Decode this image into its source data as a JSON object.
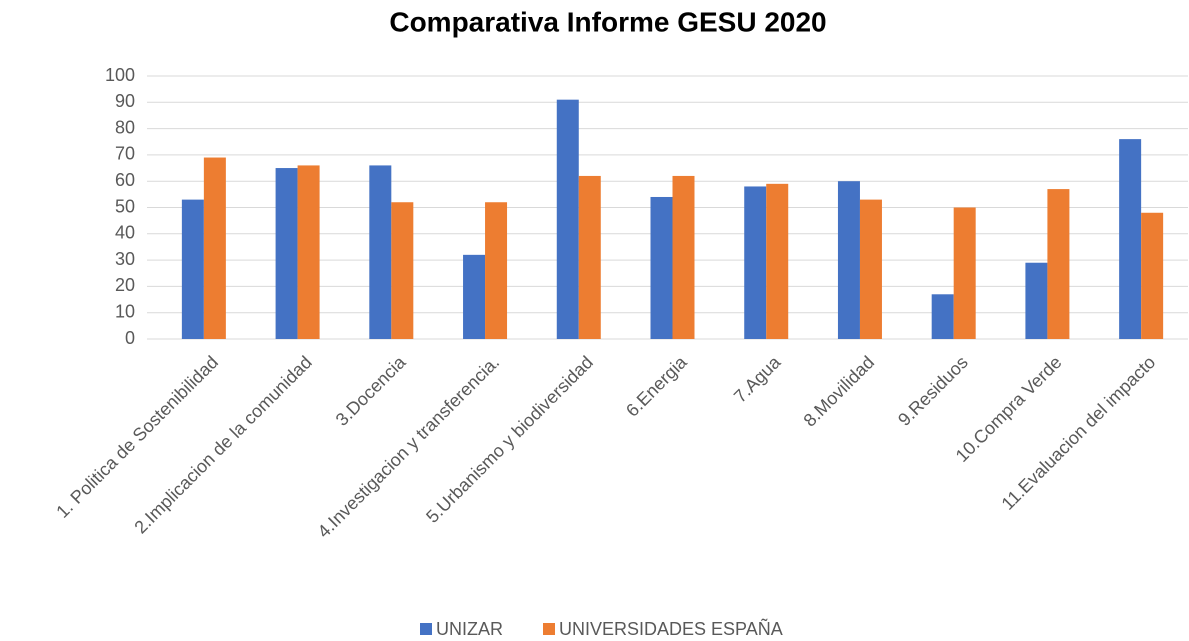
{
  "chart_data": {
    "type": "bar",
    "title": "Comparativa Informe GESU 2020",
    "categories": [
      "1. Politica de Sostenibilidad",
      "2.Implicacion de la comunidad",
      "3.Docencia",
      "4.Investigacion y transferencia.",
      "5.Urbanismo y biodiversidad",
      "6.Energia",
      "7.Agua",
      "8.Movilidad",
      "9.Residuos",
      "10.Compra Verde",
      "11.Evaluacion del impacto"
    ],
    "series": [
      {
        "name": "UNIZAR",
        "color": "#4472c4",
        "values": [
          53,
          65,
          66,
          32,
          91,
          54,
          58,
          60,
          17,
          29,
          76
        ]
      },
      {
        "name": "UNIVERSIDADES ESPAÑA",
        "color": "#ed7d31",
        "values": [
          69,
          66,
          52,
          52,
          62,
          62,
          59,
          53,
          50,
          57,
          48
        ]
      }
    ],
    "ylim": [
      0,
      100
    ],
    "yticks": [
      0,
      10,
      20,
      30,
      40,
      50,
      60,
      70,
      80,
      90,
      100
    ],
    "grid": true,
    "legend": "bottom"
  }
}
